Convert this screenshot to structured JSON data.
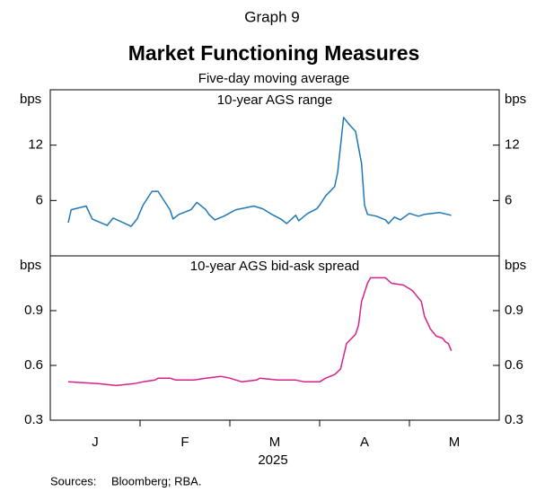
{
  "header": {
    "label": "Graph 9",
    "title": "Market Functioning Measures",
    "subtitle": "Five-day moving average"
  },
  "footer": {
    "year": "2025",
    "sources_label": "Sources:",
    "sources": "Bloomberg; RBA."
  },
  "chart_data": [
    {
      "type": "line",
      "title": "10-year AGS range",
      "y_label": "bps",
      "xlim": [
        0,
        150
      ],
      "ylim": [
        0,
        18
      ],
      "yticks": [
        6,
        12
      ],
      "x": [
        6,
        7,
        12,
        14,
        19,
        21,
        27,
        29,
        31,
        34,
        36,
        40,
        41,
        43,
        47,
        49,
        52,
        53,
        55,
        58,
        62,
        65,
        68,
        71,
        74,
        77,
        79,
        82,
        83,
        86,
        89,
        90,
        92,
        95,
        96,
        98,
        100,
        102,
        104,
        105,
        106,
        109,
        112,
        113,
        115,
        117,
        120,
        123,
        125,
        130,
        134
      ],
      "series": [
        {
          "color": "#1f78b4",
          "values": [
            3.6,
            5,
            5.4,
            4,
            3.3,
            4.1,
            3.2,
            4,
            5.5,
            7,
            7,
            5,
            4,
            4.5,
            5,
            5.8,
            5,
            4.5,
            3.9,
            4.3,
            5,
            5.2,
            5.4,
            5.1,
            4.5,
            4,
            3.5,
            4.4,
            3.8,
            4.6,
            5.1,
            5.5,
            6.5,
            7.5,
            9,
            15,
            14.2,
            13.5,
            10,
            5.5,
            4.5,
            4.3,
            3.9,
            3.5,
            4.2,
            3.9,
            4.6,
            4.3,
            4.5,
            4.7,
            4.4
          ]
        }
      ]
    },
    {
      "type": "line",
      "title": "10-year AGS bid-ask spread",
      "y_label": "bps",
      "xlim": [
        0,
        150
      ],
      "ylim": [
        0.3,
        1.2
      ],
      "yticks": [
        0.3,
        0.6,
        0.9
      ],
      "categories": [
        "J",
        "F",
        "M",
        "A",
        "M"
      ],
      "x": [
        6,
        16,
        22,
        28,
        31,
        35,
        36,
        40,
        42,
        48,
        52,
        57,
        60,
        64,
        69,
        70,
        76,
        82,
        85,
        90,
        92,
        95,
        97,
        99,
        102,
        103,
        104,
        106,
        107,
        112,
        114,
        118,
        120,
        121,
        124,
        125,
        127,
        129,
        131,
        132,
        133,
        134
      ],
      "series": [
        {
          "color": "#d6218a",
          "values": [
            0.51,
            0.5,
            0.49,
            0.5,
            0.51,
            0.52,
            0.53,
            0.53,
            0.52,
            0.52,
            0.53,
            0.54,
            0.53,
            0.51,
            0.52,
            0.53,
            0.52,
            0.52,
            0.51,
            0.51,
            0.53,
            0.55,
            0.58,
            0.72,
            0.77,
            0.82,
            0.95,
            1.05,
            1.08,
            1.08,
            1.05,
            1.04,
            1.02,
            1.01,
            0.95,
            0.87,
            0.8,
            0.76,
            0.75,
            0.73,
            0.72,
            0.68
          ]
        }
      ]
    }
  ]
}
